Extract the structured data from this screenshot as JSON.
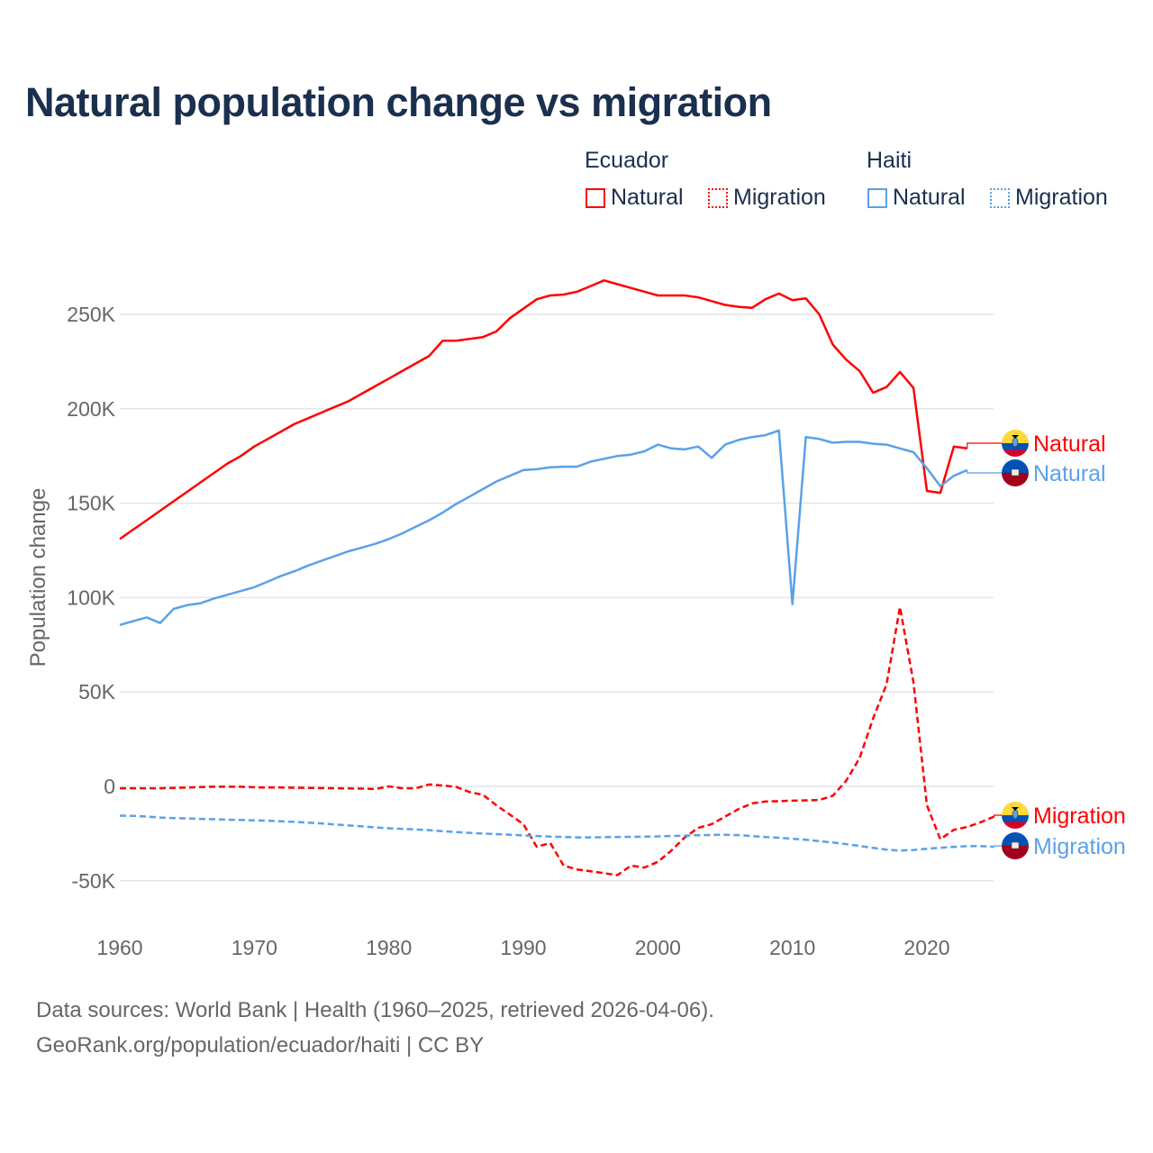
{
  "chart_data": {
    "type": "line",
    "title": "Natural population change vs migration",
    "ylabel": "Population change",
    "xlabel": "",
    "xlim": [
      1960,
      2025
    ],
    "ylim": [
      -60000,
      280000
    ],
    "yticks": [
      250000,
      200000,
      150000,
      100000,
      50000,
      0,
      -50000
    ],
    "ytick_labels": [
      "250K",
      "200K",
      "150K",
      "100K",
      "50K",
      "0",
      "-50K"
    ],
    "xticks": [
      1960,
      1970,
      1980,
      1990,
      2000,
      2010,
      2020
    ],
    "xtick_labels": [
      "1960",
      "1970",
      "1980",
      "1990",
      "2000",
      "2010",
      "2020"
    ],
    "grid": true,
    "legend": {
      "placement": "top-right",
      "groups": [
        {
          "country": "Ecuador",
          "items": [
            "Natural",
            "Migration"
          ]
        },
        {
          "country": "Haiti",
          "items": [
            "Natural",
            "Migration"
          ]
        }
      ]
    },
    "series": [
      {
        "name": "Ecuador Natural",
        "country": "Ecuador",
        "label": "Natural",
        "color": "#ff0000",
        "dash": false,
        "start": 1960,
        "values": [
          131,
          136,
          141,
          146,
          151,
          156,
          161,
          166,
          171,
          175,
          180,
          184,
          188,
          192,
          195,
          198,
          201,
          204,
          208,
          212,
          216,
          220,
          224,
          228,
          236,
          236,
          237,
          238,
          241,
          248,
          253,
          258,
          260,
          260.5,
          262,
          265,
          268,
          266,
          264,
          262,
          260,
          260,
          260,
          259,
          257,
          255,
          254,
          253.5,
          258,
          261,
          257.5,
          258.5,
          250,
          234,
          226,
          220,
          208.5,
          211.5,
          219.5,
          211,
          156.5,
          155.5,
          180,
          179
        ]
      },
      {
        "name": "Ecuador Migration",
        "country": "Ecuador",
        "label": "Migration",
        "color": "#ff0000",
        "dash": true,
        "start": 1960,
        "values": [
          -1,
          -1,
          -1,
          -1,
          -0.8,
          -0.6,
          -0.4,
          -0.2,
          -0.2,
          -0.2,
          -0.5,
          -0.6,
          -0.6,
          -0.7,
          -0.8,
          -0.9,
          -1,
          -1.1,
          -1.2,
          -1.4,
          0,
          -1,
          -1,
          1,
          0.5,
          -0.3,
          -3,
          -4.5,
          -10,
          -15,
          -20,
          -32,
          -30,
          -42,
          -44,
          -45,
          -46,
          -47,
          -42,
          -43,
          -40,
          -34,
          -27,
          -22,
          -20,
          -16,
          -12,
          -9,
          -8,
          -7.8,
          -7.6,
          -7.4,
          -7.2,
          -5,
          3,
          15,
          36,
          54,
          95,
          55,
          -10,
          -28,
          -23,
          -21.5,
          -19,
          -16
        ]
      },
      {
        "name": "Haiti Natural",
        "country": "Haiti",
        "label": "Natural",
        "color": "#5aa1e8",
        "dash": false,
        "start": 1960,
        "values": [
          85.5,
          87.5,
          89.5,
          86.5,
          94,
          96,
          97,
          99.5,
          101.5,
          103.5,
          105.5,
          108.5,
          111.5,
          114,
          117,
          119.5,
          122,
          124.5,
          126.5,
          128.5,
          131,
          134,
          137.5,
          141,
          145,
          149.5,
          153.5,
          157.5,
          161.5,
          164.5,
          167.5,
          168,
          169,
          169.3,
          169.3,
          172,
          173.5,
          175,
          175.7,
          177.5,
          181,
          179,
          178.5,
          180,
          174,
          181,
          183.5,
          185,
          186,
          188.5,
          96.5,
          185,
          184,
          182,
          182.5,
          182.5,
          181.5,
          181,
          179,
          177,
          168.5,
          159,
          164.5,
          167.5
        ]
      },
      {
        "name": "Haiti Migration",
        "country": "Haiti",
        "label": "Migration",
        "color": "#5aa1e8",
        "dash": true,
        "start": 1960,
        "values": [
          -15.5,
          -15.6,
          -16,
          -16.5,
          -16.8,
          -17,
          -17.2,
          -17.4,
          -17.6,
          -17.8,
          -18,
          -18.2,
          -18.5,
          -18.8,
          -19.2,
          -19.6,
          -20.2,
          -20.7,
          -21.2,
          -21.7,
          -22.2,
          -22.5,
          -22.8,
          -23.2,
          -23.7,
          -24.2,
          -24.6,
          -25,
          -25.3,
          -25.6,
          -26,
          -26.3,
          -26.6,
          -26.8,
          -27,
          -27,
          -26.9,
          -26.8,
          -26.7,
          -26.6,
          -26.5,
          -26.3,
          -26.1,
          -25.9,
          -25.7,
          -25.6,
          -25.8,
          -26.3,
          -26.8,
          -27.2,
          -27.7,
          -28.3,
          -29,
          -29.7,
          -30.6,
          -31.6,
          -32.6,
          -33.5,
          -34,
          -33.7,
          -33,
          -32.5,
          -32,
          -31.7,
          -31.6,
          -32
        ]
      }
    ],
    "units_note": "values in thousands"
  },
  "legend": {
    "ecuador": "Ecuador",
    "haiti": "Haiti",
    "natural": "Natural",
    "migration": "Migration"
  },
  "colors": {
    "ecuador": "#ff0000",
    "haiti": "#5aa1e8",
    "title": "#1b2f4e"
  },
  "footer": {
    "line1": "Data sources: World Bank | Health (1960–2025, retrieved 2026-04-06).",
    "line2": "GeoRank.org/population/ecuador/haiti | CC BY"
  }
}
